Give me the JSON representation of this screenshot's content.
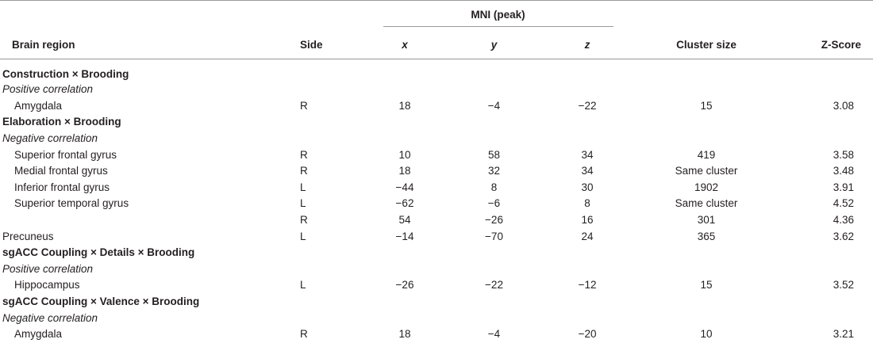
{
  "table": {
    "header": {
      "group": "MNI (peak)",
      "columns": [
        "Brain region",
        "Side",
        "x",
        "y",
        "z",
        "Cluster size",
        "Z-Score"
      ]
    },
    "sections": [
      {
        "title": "Construction × Brooding",
        "subsections": [
          {
            "title": "Positive correlation",
            "rows": [
              {
                "region": "Amygdala",
                "side": "R",
                "x": "18",
                "y": "−4",
                "z": "−22",
                "cluster": "15",
                "z_score": "3.08"
              }
            ]
          }
        ]
      },
      {
        "title": "Elaboration × Brooding",
        "subsections": [
          {
            "title": "Negative correlation",
            "rows": [
              {
                "region": "Superior frontal gyrus",
                "side": "R",
                "x": "10",
                "y": "58",
                "z": "34",
                "cluster": "419",
                "z_score": "3.58"
              },
              {
                "region": "Medial frontal gyrus",
                "side": "R",
                "x": "18",
                "y": "32",
                "z": "34",
                "cluster": "Same cluster",
                "z_score": "3.48"
              },
              {
                "region": "Inferior frontal gyrus",
                "side": "L",
                "x": "−44",
                "y": "8",
                "z": "30",
                "cluster": "1902",
                "z_score": "3.91"
              },
              {
                "region": "Superior temporal gyrus",
                "side": "L",
                "x": "−62",
                "y": "−6",
                "z": "8",
                "cluster": "Same cluster",
                "z_score": "4.52"
              },
              {
                "side": "R",
                "x": "54",
                "y": "−26",
                "z": "16",
                "cluster": "301",
                "z_score": "4.36"
              },
              {
                "region": "Precuneus",
                "side": "L",
                "x": "−14",
                "y": "−70",
                "z": "24",
                "cluster": "365",
                "z_score": "3.62"
              }
            ]
          }
        ]
      },
      {
        "title": "sgACC Coupling × Details × Brooding",
        "subsections": [
          {
            "title": "Positive correlation",
            "rows": [
              {
                "region": "Hippocampus",
                "side": "L",
                "x": "−26",
                "y": "−22",
                "z": "−12",
                "cluster": "15",
                "z_score": "3.52"
              }
            ]
          }
        ]
      },
      {
        "title": "sgACC Coupling × Valence × Brooding",
        "subsections": [
          {
            "title": "Negative correlation",
            "rows": [
              {
                "region": "Amygdala",
                "side": "R",
                "x": "18",
                "y": "−4",
                "z": "−20",
                "cluster": "10",
                "z_score": "3.21"
              }
            ]
          }
        ]
      }
    ]
  }
}
